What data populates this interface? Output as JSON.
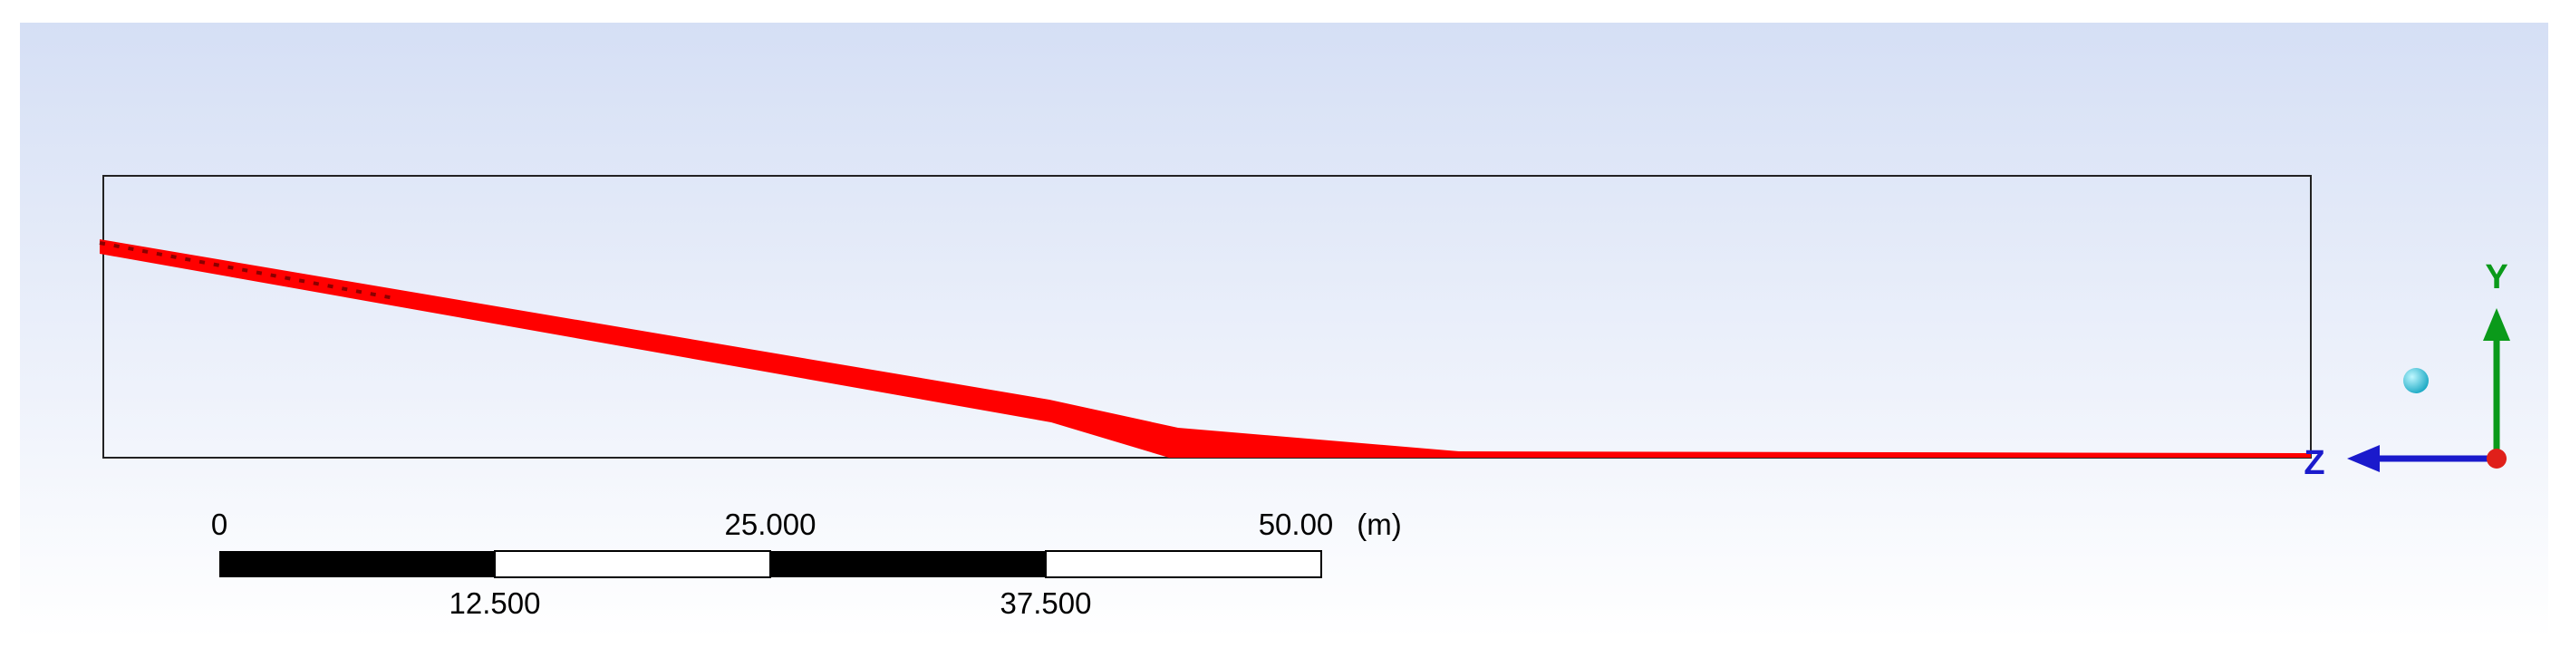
{
  "scale_bar": {
    "top_labels": [
      "0",
      "25.000",
      "50.00"
    ],
    "unit": "(m)",
    "bottom_labels": [
      "12.500",
      "37.500"
    ]
  },
  "axes": {
    "y": "Y",
    "z": "Z"
  }
}
